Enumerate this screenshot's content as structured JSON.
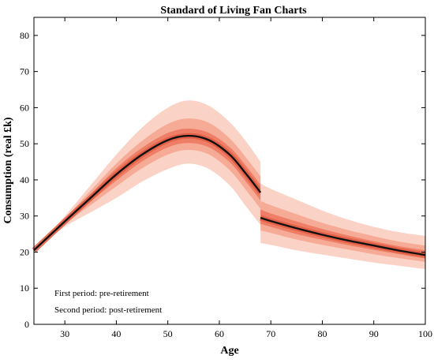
{
  "chart_data": {
    "type": "area",
    "title": "Standard of Living Fan Charts",
    "xlabel": "Age",
    "ylabel": "Consumption (real £k)",
    "xlim": [
      24,
      100
    ],
    "ylim": [
      0,
      85
    ],
    "x_ticks": [
      30,
      40,
      50,
      60,
      70,
      80,
      90,
      100
    ],
    "y_ticks": [
      0,
      10,
      20,
      30,
      40,
      50,
      60,
      70,
      80
    ],
    "grid": false,
    "annotations": [
      "First period: pre-retirement",
      "Second period: post-retirement"
    ],
    "colors": {
      "median_line": "#111111",
      "band_outer": "#fbd2c6",
      "band_mid": "#f6ab97",
      "band_inner": "#ee7f66",
      "band_core": "#e05c44"
    },
    "periods": [
      {
        "name": "pre-retirement",
        "x": [
          24,
          30,
          35,
          40,
          45,
          50,
          54,
          58,
          62,
          65,
          68
        ],
        "median": [
          20.5,
          28.5,
          35,
          41.5,
          47,
          51,
          52.2,
          51,
          47,
          42,
          36.5
        ],
        "lower_90": [
          20.5,
          27,
          31,
          35,
          39.5,
          43,
          44.5,
          43,
          38.5,
          33,
          27.5
        ],
        "upper_90": [
          20.5,
          30,
          38.5,
          47,
          54.5,
          60,
          62,
          60.5,
          56,
          51,
          45
        ],
        "lower_60": [
          20.5,
          27.7,
          33,
          38.2,
          43.2,
          47,
          48.3,
          47,
          42.7,
          37.5,
          32
        ],
        "upper_60": [
          20.5,
          29.3,
          37,
          44.5,
          50.8,
          55.5,
          57,
          55.8,
          51.5,
          46.5,
          41
        ],
        "lower_30": [
          20.5,
          28.1,
          34,
          39.8,
          45.1,
          49,
          50.2,
          49,
          44.9,
          39.8,
          34.3
        ],
        "upper_30": [
          20.5,
          28.9,
          36,
          43.2,
          48.9,
          53,
          54.2,
          53,
          49.1,
          44.2,
          38.7
        ]
      },
      {
        "name": "post-retirement",
        "x": [
          68,
          70,
          75,
          80,
          85,
          90,
          95,
          100
        ],
        "median": [
          29.5,
          28.6,
          26.6,
          24.8,
          23.2,
          21.8,
          20.4,
          19.2
        ],
        "lower_90": [
          22.5,
          22,
          20.5,
          19.3,
          18.2,
          17.1,
          16.2,
          15.3
        ],
        "upper_90": [
          39,
          37.5,
          34.5,
          31.5,
          29,
          27,
          25.5,
          24.5
        ],
        "lower_60": [
          26,
          25.3,
          23.5,
          22,
          20.7,
          19.4,
          18.3,
          17.3
        ],
        "upper_60": [
          34.2,
          33,
          30.5,
          28.1,
          26.1,
          24.4,
          22.9,
          21.8
        ],
        "lower_30": [
          27.8,
          27,
          25,
          23.4,
          21.9,
          20.6,
          19.4,
          18.2
        ],
        "upper_30": [
          31.8,
          30.7,
          28.5,
          26.4,
          24.6,
          23,
          21.6,
          20.5
        ]
      }
    ]
  }
}
